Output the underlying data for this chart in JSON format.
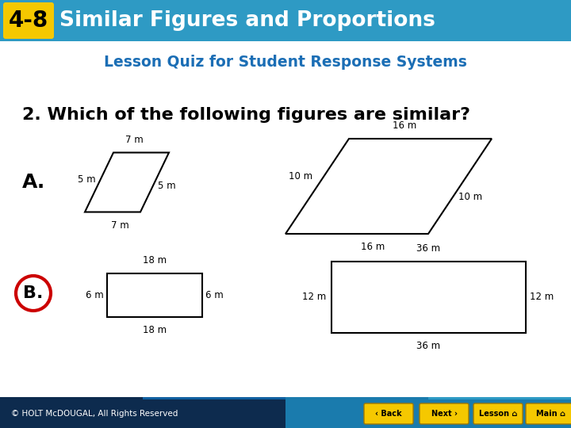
{
  "header_text": "Similar Figures and Proportions",
  "header_number": "4-8",
  "header_bg": "#2E9AC4",
  "header_number_bg": "#F5C800",
  "subtitle": "Lesson Quiz for Student Response Systems",
  "subtitle_color": "#1B6EB5",
  "question": "2. Which of the following figures are similar?",
  "bg_color": "#FFFFFF",
  "footer_text": "© HOLT McDOUGAL, All Rights Reserved",
  "footer_bg_left": "#1A3A5C",
  "footer_bg_right": "#2E9AC4",
  "nav_buttons": [
    "Back",
    "Next",
    "Lesson",
    "Main"
  ],
  "nav_btn_color": "#F5C800",
  "nav_btn_text_color": "#222200",
  "answer_circle_color": "#CC0000"
}
